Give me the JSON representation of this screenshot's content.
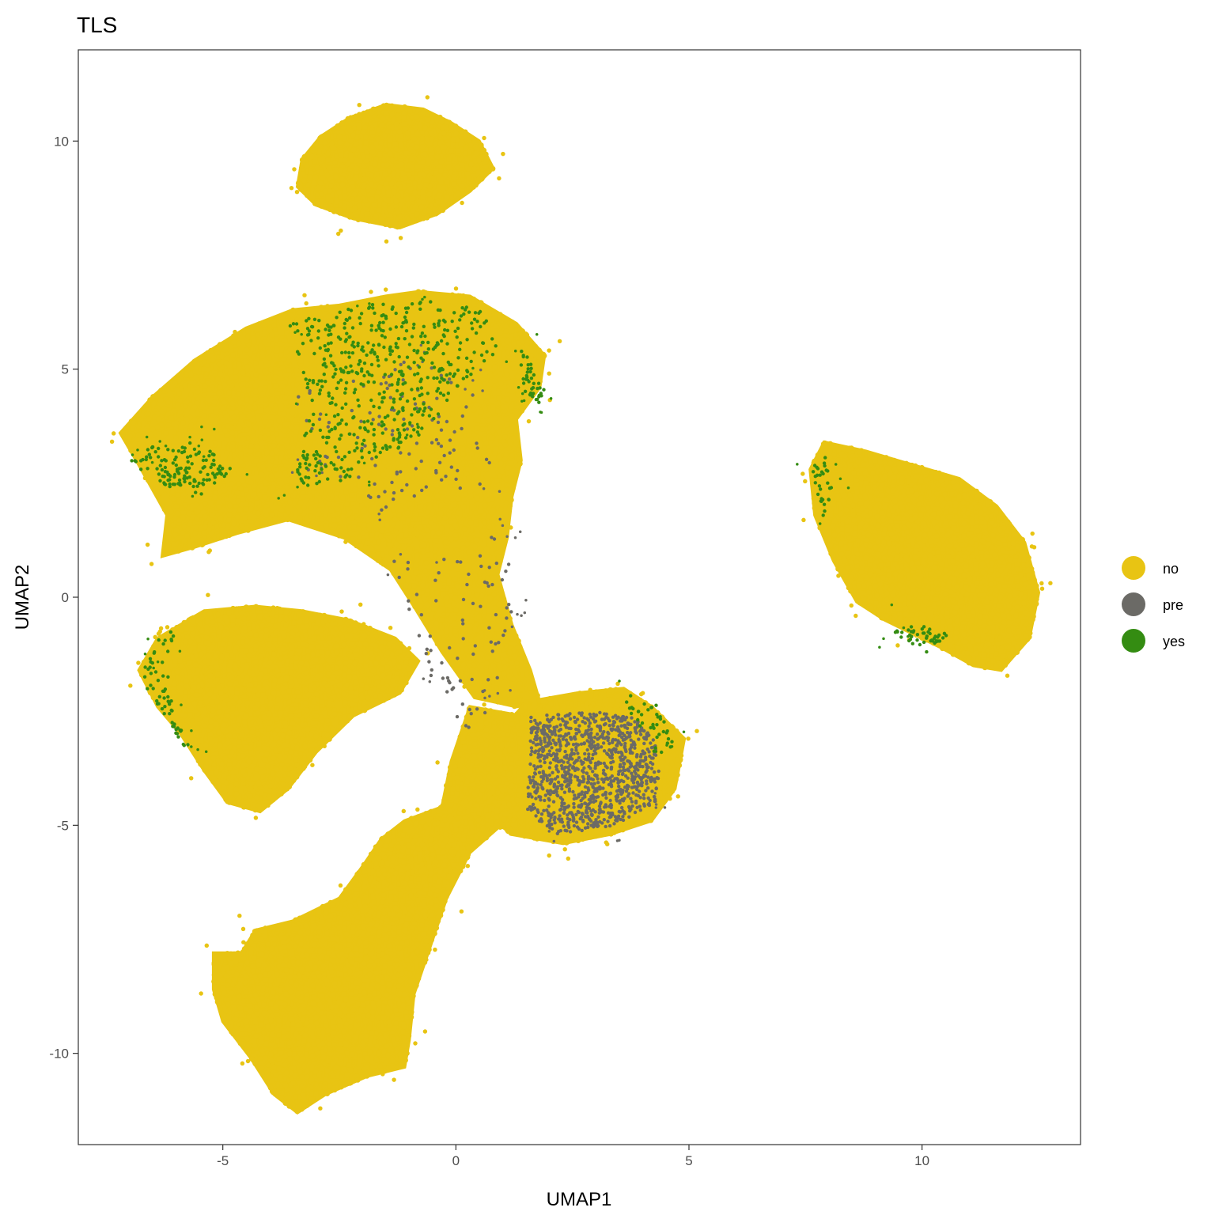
{
  "chart_data": {
    "type": "scatter",
    "title": "TLS",
    "xlabel": "UMAP1",
    "ylabel": "UMAP2",
    "xlim": [
      -8.1,
      13.4
    ],
    "ylim": [
      -12.0,
      12.0
    ],
    "x_ticks": [
      -5,
      0,
      5,
      10
    ],
    "y_ticks": [
      -10,
      -5,
      0,
      5,
      10
    ],
    "x_tick_labels": [
      "-5",
      "0",
      "5",
      "10"
    ],
    "y_tick_labels": [
      "-10",
      "-5",
      "0",
      "5",
      "10"
    ],
    "grid": false,
    "legend": {
      "position": "right",
      "entries": [
        {
          "label": "no",
          "color": "#E8C413"
        },
        {
          "label": "pre",
          "color": "#6B6A66"
        },
        {
          "label": "yes",
          "color": "#348C12"
        }
      ]
    },
    "series": [
      {
        "name": "no",
        "color": "#E8C413",
        "clusters": [
          {
            "polygon": [
              [
                -3.4,
                9.0
              ],
              [
                -3.3,
                9.6
              ],
              [
                -2.9,
                10.1
              ],
              [
                -2.3,
                10.5
              ],
              [
                -1.5,
                10.8
              ],
              [
                -0.7,
                10.7
              ],
              [
                -0.1,
                10.4
              ],
              [
                0.5,
                10.0
              ],
              [
                0.8,
                9.4
              ],
              [
                0.3,
                8.9
              ],
              [
                -0.4,
                8.4
              ],
              [
                -1.2,
                8.1
              ],
              [
                -2.2,
                8.3
              ],
              [
                -3.0,
                8.6
              ]
            ],
            "density": 2400,
            "noise": 30
          },
          {
            "polygon": [
              [
                -7.2,
                3.6
              ],
              [
                -6.5,
                4.4
              ],
              [
                -5.6,
                5.2
              ],
              [
                -4.5,
                5.9
              ],
              [
                -3.5,
                6.3
              ],
              [
                -2.5,
                6.4
              ],
              [
                -1.5,
                6.6
              ],
              [
                -0.8,
                6.7
              ],
              [
                0.3,
                6.6
              ],
              [
                1.3,
                6.0
              ],
              [
                1.9,
                5.3
              ],
              [
                1.8,
                4.6
              ],
              [
                1.3,
                3.9
              ],
              [
                1.4,
                3.0
              ],
              [
                1.2,
                2.2
              ],
              [
                1.1,
                1.3
              ],
              [
                0.9,
                0.5
              ],
              [
                1.2,
                -0.6
              ],
              [
                1.6,
                -1.6
              ],
              [
                1.8,
                -2.3
              ],
              [
                1.3,
                -2.4
              ],
              [
                0.4,
                -2.2
              ],
              [
                -0.3,
                -1.2
              ],
              [
                -0.9,
                -0.2
              ],
              [
                -1.4,
                0.6
              ],
              [
                -2.4,
                1.3
              ],
              [
                -3.6,
                1.7
              ],
              [
                -4.7,
                1.4
              ],
              [
                -5.6,
                1.1
              ],
              [
                -6.3,
                0.9
              ],
              [
                -6.2,
                1.8
              ],
              [
                -6.8,
                2.9
              ]
            ],
            "density": 6200,
            "noise": 60
          },
          {
            "polygon": [
              [
                -6.8,
                -1.6
              ],
              [
                -6.4,
                -0.9
              ],
              [
                -5.4,
                -0.3
              ],
              [
                -4.3,
                -0.2
              ],
              [
                -3.3,
                -0.3
              ],
              [
                -2.3,
                -0.5
              ],
              [
                -1.3,
                -0.9
              ],
              [
                -0.8,
                -1.4
              ],
              [
                -1.2,
                -2.1
              ],
              [
                -2.2,
                -2.6
              ],
              [
                -3.0,
                -3.4
              ],
              [
                -3.6,
                -4.2
              ],
              [
                -4.2,
                -4.7
              ],
              [
                -4.9,
                -4.5
              ],
              [
                -5.4,
                -3.8
              ],
              [
                -5.9,
                -3.0
              ],
              [
                -6.4,
                -2.4
              ]
            ],
            "density": 3200,
            "noise": 40
          },
          {
            "polygon": [
              [
                1.5,
                -2.3
              ],
              [
                2.6,
                -2.1
              ],
              [
                3.6,
                -2.0
              ],
              [
                4.2,
                -2.4
              ],
              [
                4.9,
                -3.1
              ],
              [
                4.7,
                -4.2
              ],
              [
                4.2,
                -4.9
              ],
              [
                3.3,
                -5.2
              ],
              [
                2.3,
                -5.4
              ],
              [
                1.2,
                -5.2
              ],
              [
                0.6,
                -4.7
              ],
              [
                0.8,
                -3.6
              ],
              [
                1.1,
                -2.8
              ]
            ],
            "density": 2400,
            "noise": 30
          },
          {
            "polygon": [
              [
                0.3,
                -2.4
              ],
              [
                1.4,
                -2.6
              ],
              [
                1.7,
                -3.4
              ],
              [
                1.3,
                -4.7
              ],
              [
                0.3,
                -5.6
              ],
              [
                -0.2,
                -6.6
              ],
              [
                -0.6,
                -7.8
              ],
              [
                -0.9,
                -8.7
              ],
              [
                -1.0,
                -9.7
              ],
              [
                -1.1,
                -10.3
              ],
              [
                -1.9,
                -10.5
              ],
              [
                -2.8,
                -10.9
              ],
              [
                -3.4,
                -11.3
              ],
              [
                -3.9,
                -10.9
              ],
              [
                -4.4,
                -10.1
              ],
              [
                -5.0,
                -9.3
              ],
              [
                -5.2,
                -8.6
              ],
              [
                -5.2,
                -7.8
              ],
              [
                -4.6,
                -7.8
              ],
              [
                -4.3,
                -7.3
              ],
              [
                -3.5,
                -7.1
              ],
              [
                -2.5,
                -6.6
              ],
              [
                -2.0,
                -5.9
              ],
              [
                -1.6,
                -5.3
              ],
              [
                -1.1,
                -4.9
              ],
              [
                -0.3,
                -4.6
              ],
              [
                -0.1,
                -3.6
              ]
            ],
            "density": 5600,
            "noise": 40
          },
          {
            "polygon": [
              [
                7.9,
                3.4
              ],
              [
                8.8,
                3.2
              ],
              [
                9.8,
                2.9
              ],
              [
                10.8,
                2.6
              ],
              [
                11.6,
                2.0
              ],
              [
                12.2,
                1.2
              ],
              [
                12.5,
                0.1
              ],
              [
                12.3,
                -0.9
              ],
              [
                11.7,
                -1.6
              ],
              [
                11.1,
                -1.5
              ],
              [
                10.4,
                -1.1
              ],
              [
                9.8,
                -0.8
              ],
              [
                9.2,
                -0.5
              ],
              [
                8.6,
                -0.1
              ],
              [
                8.1,
                0.8
              ],
              [
                7.7,
                1.8
              ],
              [
                7.6,
                2.8
              ]
            ],
            "density": 3600,
            "noise": 30
          }
        ]
      },
      {
        "name": "pre",
        "color": "#6B6A66",
        "clusters": [
          {
            "polygon": [
              [
                1.6,
                -2.6
              ],
              [
                2.8,
                -2.5
              ],
              [
                3.8,
                -2.6
              ],
              [
                4.4,
                -3.3
              ],
              [
                4.3,
                -4.5
              ],
              [
                3.4,
                -5.0
              ],
              [
                2.2,
                -5.2
              ],
              [
                1.5,
                -4.7
              ],
              [
                1.6,
                -3.6
              ]
            ],
            "density": 1050,
            "noise": 10
          },
          {
            "polygon": [
              [
                -0.4,
                0.8
              ],
              [
                1.1,
                1.5
              ],
              [
                1.3,
                -0.4
              ],
              [
                0.9,
                -2.2
              ],
              [
                0.1,
                -3.2
              ],
              [
                -0.8,
                -1.6
              ],
              [
                -1.4,
                0.8
              ]
            ],
            "density": 80,
            "noise": 20
          },
          {
            "polygon": [
              [
                -3.5,
                4.5
              ],
              [
                -1.0,
                5.2
              ],
              [
                0.5,
                4.8
              ],
              [
                0.8,
                2.5
              ],
              [
                -1.5,
                1.8
              ],
              [
                -3.2,
                2.8
              ]
            ],
            "density": 120,
            "noise": 20
          }
        ]
      },
      {
        "name": "yes",
        "color": "#348C12",
        "clusters": [
          {
            "polygon": [
              [
                -3.6,
                6.0
              ],
              [
                -2.0,
                6.4
              ],
              [
                -0.6,
                6.5
              ],
              [
                0.6,
                6.3
              ],
              [
                0.9,
                5.4
              ],
              [
                0.2,
                4.7
              ],
              [
                -0.7,
                3.6
              ],
              [
                -2.2,
                2.6
              ],
              [
                -3.5,
                2.4
              ],
              [
                -3.1,
                4.2
              ]
            ],
            "density": 520,
            "noise": 20
          },
          {
            "polygon": [
              [
                -7.0,
                3.0
              ],
              [
                -6.5,
                3.3
              ],
              [
                -5.5,
                3.4
              ],
              [
                -4.8,
                2.8
              ],
              [
                -5.4,
                2.2
              ],
              [
                -6.4,
                2.5
              ]
            ],
            "density": 130,
            "noise": 15
          },
          {
            "polygon": [
              [
                1.4,
                5.5
              ],
              [
                1.9,
                4.6
              ],
              [
                1.8,
                4.2
              ],
              [
                1.4,
                4.6
              ]
            ],
            "density": 40,
            "noise": 10
          },
          {
            "polygon": [
              [
                -6.8,
                -1.8
              ],
              [
                -6.4,
                -0.9
              ],
              [
                -5.9,
                -0.5
              ],
              [
                -6.2,
                -1.4
              ],
              [
                -6.0,
                -2.6
              ],
              [
                -5.6,
                -3.6
              ],
              [
                -6.0,
                -3.0
              ]
            ],
            "density": 60,
            "noise": 10
          },
          {
            "polygon": [
              [
                7.6,
                2.8
              ],
              [
                7.9,
                3.2
              ],
              [
                8.1,
                2.3
              ],
              [
                7.9,
                1.7
              ]
            ],
            "density": 30,
            "noise": 5
          },
          {
            "polygon": [
              [
                9.6,
                -0.5
              ],
              [
                10.6,
                -0.8
              ],
              [
                10.1,
                -1.2
              ],
              [
                9.4,
                -0.8
              ]
            ],
            "density": 45,
            "noise": 5
          },
          {
            "polygon": [
              [
                3.6,
                -2.1
              ],
              [
                4.4,
                -2.4
              ],
              [
                4.7,
                -3.2
              ],
              [
                4.3,
                -3.6
              ],
              [
                3.8,
                -2.8
              ]
            ],
            "density": 40,
            "noise": 5
          }
        ]
      }
    ]
  }
}
